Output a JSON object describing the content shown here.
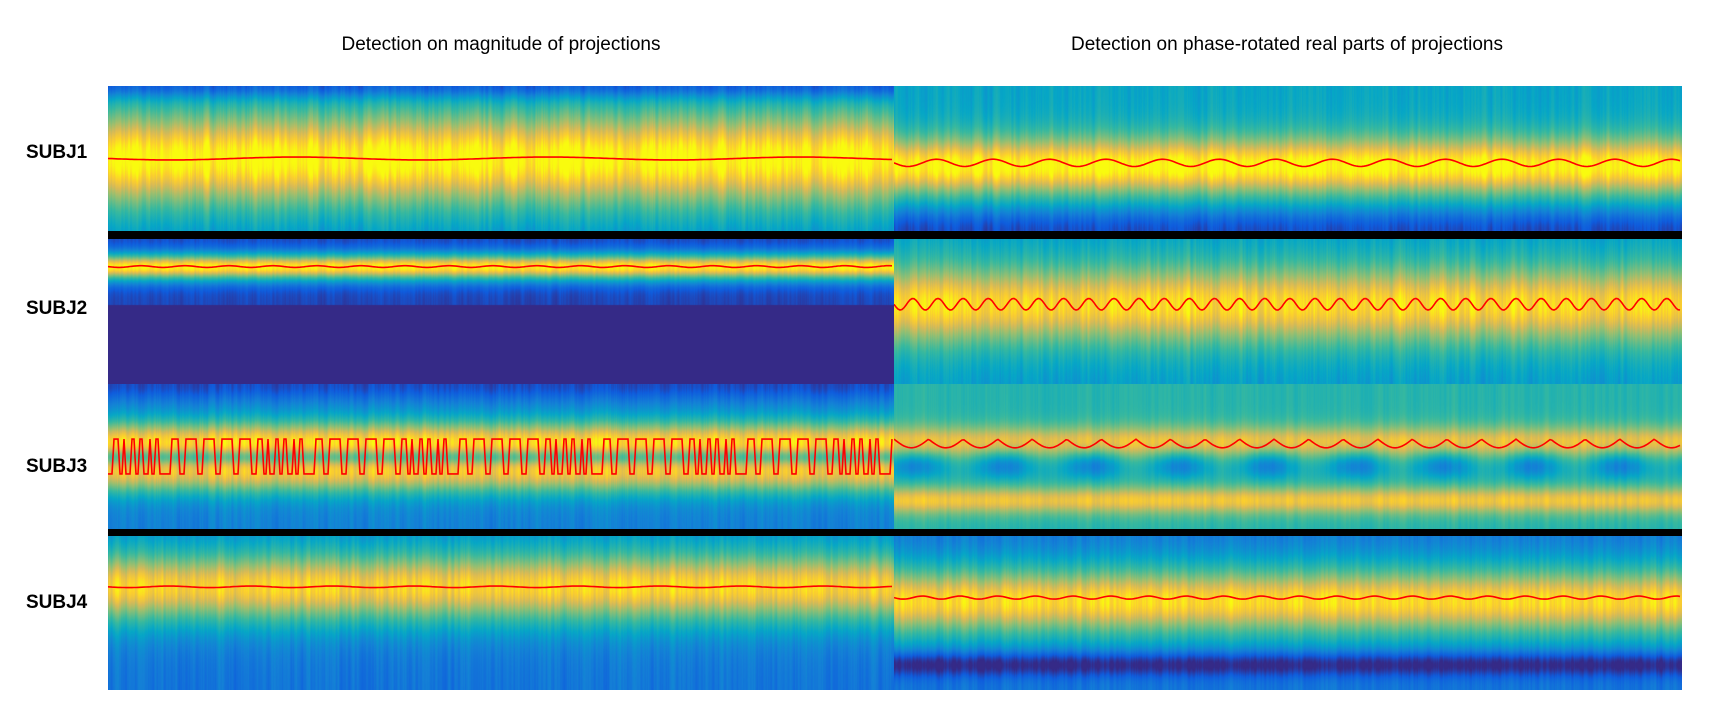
{
  "chart_data": {
    "type": "heatmap",
    "colormap": "parula",
    "column_titles": [
      "Detection on magnitude of projections",
      "Detection on phase-rotated real parts of projections"
    ],
    "row_labels": [
      "SUBJ1",
      "SUBJ2",
      "SUBJ3",
      "SUBJ4"
    ],
    "detection_line_color": "#ff0000",
    "separator_color": "#000000"
  }
}
